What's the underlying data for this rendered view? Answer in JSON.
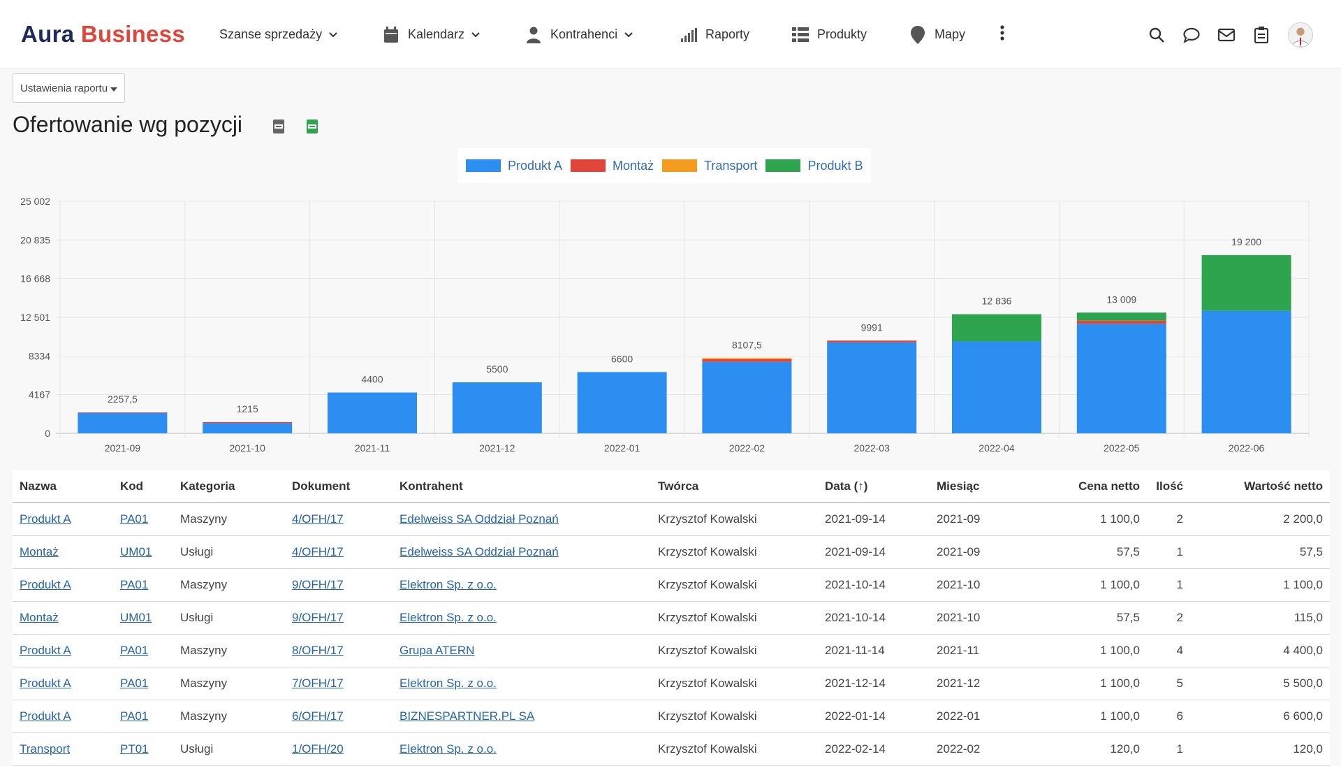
{
  "app": {
    "brand_part1": "Aura",
    "brand_part2": "Business",
    "brand_color_dark": "#1f2b5c",
    "brand_color_red": "#e2463a"
  },
  "nav": {
    "items": [
      {
        "label": "Szanse sprzedaży",
        "icon": "none",
        "dropdown": true
      },
      {
        "label": "Kalendarz",
        "icon": "calendar-icon",
        "dropdown": true
      },
      {
        "label": "Kontrahenci",
        "icon": "person-icon",
        "dropdown": true
      },
      {
        "label": "Raporty",
        "icon": "bar-signal-icon",
        "dropdown": false
      },
      {
        "label": "Produkty",
        "icon": "list-icon",
        "dropdown": false
      },
      {
        "label": "Mapy",
        "icon": "map-pin-icon",
        "dropdown": false
      }
    ],
    "right_icons": [
      "search-icon",
      "chat-icon",
      "mail-icon",
      "clipboard-icon",
      "avatar"
    ]
  },
  "report": {
    "settings_label": "Ustawienia raportu",
    "title": "Ofertowanie wg pozycji"
  },
  "chart_data": {
    "type": "bar",
    "stacked": true,
    "categories": [
      "2021-09",
      "2021-10",
      "2021-11",
      "2021-12",
      "2022-01",
      "2022-02",
      "2022-03",
      "2022-04",
      "2022-05",
      "2022-06"
    ],
    "series": [
      {
        "name": "Produkt A",
        "color": "#2b8ef0",
        "values": [
          2200,
          1100,
          4400,
          5500,
          6600,
          7700,
          9800,
          9900,
          11800,
          13200
        ]
      },
      {
        "name": "Montaż",
        "color": "#e2463a",
        "values": [
          57.5,
          115,
          0,
          0,
          0,
          287.5,
          191,
          0,
          345,
          0
        ]
      },
      {
        "name": "Transport",
        "color": "#f39c1f",
        "values": [
          0,
          0,
          0,
          0,
          0,
          120,
          0,
          0,
          0,
          0
        ]
      },
      {
        "name": "Produkt B",
        "color": "#2ea44f",
        "values": [
          0,
          0,
          0,
          0,
          0,
          0,
          0,
          2936,
          864,
          6000
        ]
      }
    ],
    "totals": [
      "2257,5",
      "1215",
      "4400",
      "5500",
      "6600",
      "8107,5",
      "9991",
      "12 836",
      "13 009",
      "19 200"
    ],
    "y_ticks": [
      "0",
      "4167",
      "8334",
      "12 501",
      "16 668",
      "20 835",
      "25 002"
    ],
    "ylim": [
      0,
      25002
    ],
    "grid": true,
    "legend_position": "top"
  },
  "table": {
    "headers": {
      "nazwa": "Nazwa",
      "kod": "Kod",
      "kategoria": "Kategoria",
      "dokument": "Dokument",
      "kontrahent": "Kontrahent",
      "tworca": "Twórca",
      "data": "Data (↑)",
      "miesiac": "Miesiąc",
      "cena": "Cena netto",
      "ilosc": "Ilość",
      "wartosc": "Wartość netto"
    },
    "rows": [
      [
        "Produkt A",
        "PA01",
        "Maszyny",
        "4/OFH/17",
        "Edelweiss SA Oddział Poznań",
        "Krzysztof Kowalski",
        "2021-09-14",
        "2021-09",
        "1 100,0",
        "2",
        "2 200,0"
      ],
      [
        "Montaż",
        "UM01",
        "Usługi",
        "4/OFH/17",
        "Edelweiss SA Oddział Poznań",
        "Krzysztof Kowalski",
        "2021-09-14",
        "2021-09",
        "57,5",
        "1",
        "57,5"
      ],
      [
        "Produkt A",
        "PA01",
        "Maszyny",
        "9/OFH/17",
        "Elektron Sp. z o.o.",
        "Krzysztof Kowalski",
        "2021-10-14",
        "2021-10",
        "1 100,0",
        "1",
        "1 100,0"
      ],
      [
        "Montaż",
        "UM01",
        "Usługi",
        "9/OFH/17",
        "Elektron Sp. z o.o.",
        "Krzysztof Kowalski",
        "2021-10-14",
        "2021-10",
        "57,5",
        "2",
        "115,0"
      ],
      [
        "Produkt A",
        "PA01",
        "Maszyny",
        "8/OFH/17",
        "Grupa ATERN",
        "Krzysztof Kowalski",
        "2021-11-14",
        "2021-11",
        "1 100,0",
        "4",
        "4 400,0"
      ],
      [
        "Produkt A",
        "PA01",
        "Maszyny",
        "7/OFH/17",
        "Elektron Sp. z o.o.",
        "Krzysztof Kowalski",
        "2021-12-14",
        "2021-12",
        "1 100,0",
        "5",
        "5 500,0"
      ],
      [
        "Produkt A",
        "PA01",
        "Maszyny",
        "6/OFH/17",
        "BIZNESPARTNER.PL SA",
        "Krzysztof Kowalski",
        "2022-01-14",
        "2022-01",
        "1 100,0",
        "6",
        "6 600,0"
      ],
      [
        "Transport",
        "PT01",
        "Usługi",
        "1/OFH/20",
        "Elektron Sp. z o.o.",
        "Krzysztof Kowalski",
        "2022-02-14",
        "2022-02",
        "120,0",
        "1",
        "120,0"
      ]
    ]
  }
}
